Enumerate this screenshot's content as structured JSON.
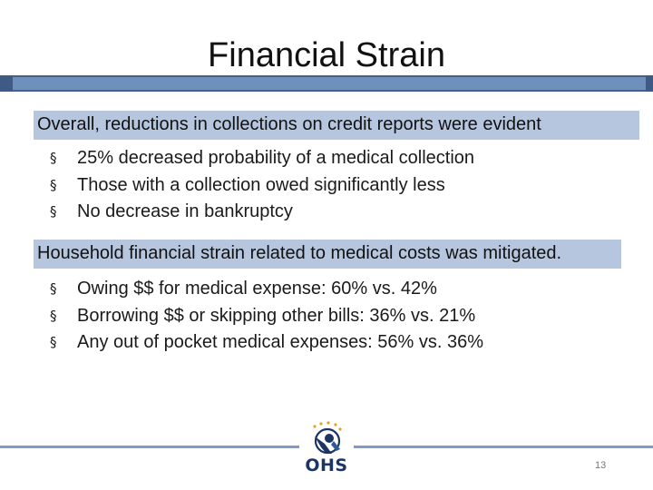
{
  "slide": {
    "title": "Financial Strain",
    "page_number": "13"
  },
  "sections": [
    {
      "header": "Overall, reductions in collections on credit reports were evident",
      "bullets": [
        "25% decreased probability of a medical collection",
        "Those with a collection owed significantly less",
        "No decrease in bankruptcy"
      ]
    },
    {
      "header": "Household financial strain related to medical costs was mitigated.",
      "bullets": [
        "Owing $$ for medical expense: 60% vs. 42%",
        "Borrowing $$ or skipping other bills: 36% vs. 21%",
        "Any out of pocket medical expenses: 56% vs. 36%"
      ]
    }
  ],
  "logo": {
    "text": "OHS",
    "icon": "ohs-logo-icon"
  },
  "colors": {
    "header_fill": "#b6c6df",
    "title_bar": "#6f8fbd",
    "footer_line": "#7f9cc7",
    "logo_text": "#1d3563"
  }
}
